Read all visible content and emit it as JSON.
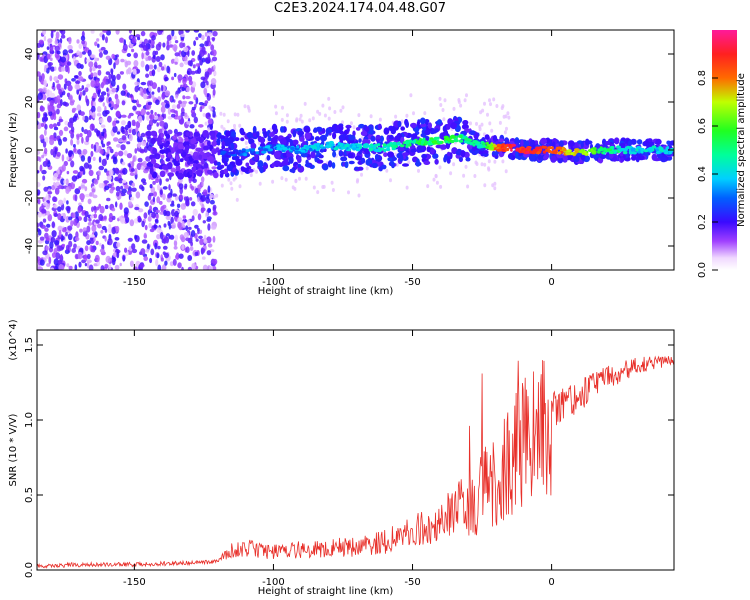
{
  "title": "C2E3.2024.174.04.48.G07",
  "chart_data": [
    {
      "type": "heatmap",
      "xlabel": "Height of straight line (km)",
      "ylabel": "Frequency (Hz)",
      "xlim": [
        -185,
        44
      ],
      "ylim": [
        -50,
        50
      ],
      "xticks": [
        -150,
        -100,
        -50,
        0
      ],
      "yticks": [
        -40,
        -20,
        0,
        20,
        40
      ],
      "colorbar": {
        "label": "Normalized spectral amplitude",
        "range": [
          0,
          1
        ],
        "ticks": [
          0.0,
          0.2,
          0.4,
          0.6,
          0.8
        ],
        "tick_labels": [
          "0.0",
          "0.2",
          "0.4",
          "0.6",
          "0.8"
        ]
      },
      "ridge": {
        "x": [
          -125,
          -110,
          -100,
          -90,
          -80,
          -70,
          -60,
          -50,
          -40,
          -32,
          -25,
          -20,
          -15,
          -10,
          0,
          10,
          20,
          30,
          44
        ],
        "y": [
          -2,
          -1,
          1,
          0,
          2,
          1,
          1,
          3,
          4,
          5,
          2,
          1,
          1,
          0,
          0,
          -1,
          0,
          0,
          0
        ],
        "amplitude": [
          0.2,
          0.3,
          0.35,
          0.35,
          0.4,
          0.4,
          0.45,
          0.5,
          0.55,
          0.5,
          0.45,
          0.8,
          0.9,
          0.9,
          0.85,
          0.7,
          0.5,
          0.4,
          0.4
        ]
      }
    },
    {
      "type": "line",
      "xlabel": "Height of straight line (km)",
      "ylabel": "SNR (10 * V/V)",
      "multiplier": "(x10^4)",
      "xlim": [
        -185,
        44
      ],
      "ylim": [
        0,
        1.6
      ],
      "xticks": [
        -150,
        -100,
        -50,
        0
      ],
      "yticks": [
        0.0,
        0.5,
        1.0,
        1.5
      ],
      "color": "#e8302a",
      "series": [
        {
          "x": [
            -185,
            -170,
            -150,
            -130,
            -120,
            -115,
            -110,
            -100,
            -90,
            -80,
            -70,
            -60,
            -50,
            -45,
            -40,
            -35,
            -30,
            -25,
            -20,
            -15,
            -10,
            -5,
            0,
            10,
            20,
            30,
            44
          ],
          "values": [
            0.02,
            0.03,
            0.03,
            0.04,
            0.05,
            0.12,
            0.14,
            0.12,
            0.13,
            0.14,
            0.15,
            0.18,
            0.24,
            0.28,
            0.3,
            0.38,
            0.45,
            0.55,
            0.62,
            0.78,
            0.88,
            0.98,
            1.08,
            1.18,
            1.3,
            1.37,
            1.4
          ]
        }
      ]
    }
  ]
}
